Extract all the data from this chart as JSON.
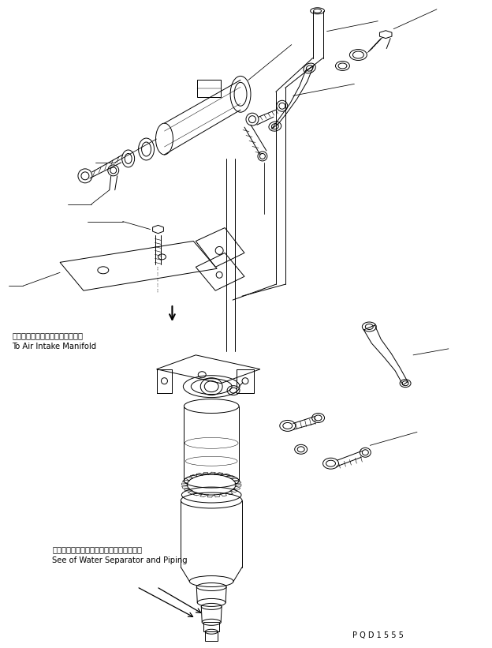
{
  "bg_color": "#ffffff",
  "lc": "#000000",
  "lw": 0.7,
  "figsize": [
    6.24,
    8.21
  ],
  "dpi": 100,
  "label1_jp": "エアーインテークマニホールドへ",
  "label1_en": "To Air Intake Manifold",
  "label2_jp": "ウォータセパレータおよびパイピング参照",
  "label2_en": "See of Water Separator and Piping",
  "code_text": "P Q D 1 5 5 5"
}
